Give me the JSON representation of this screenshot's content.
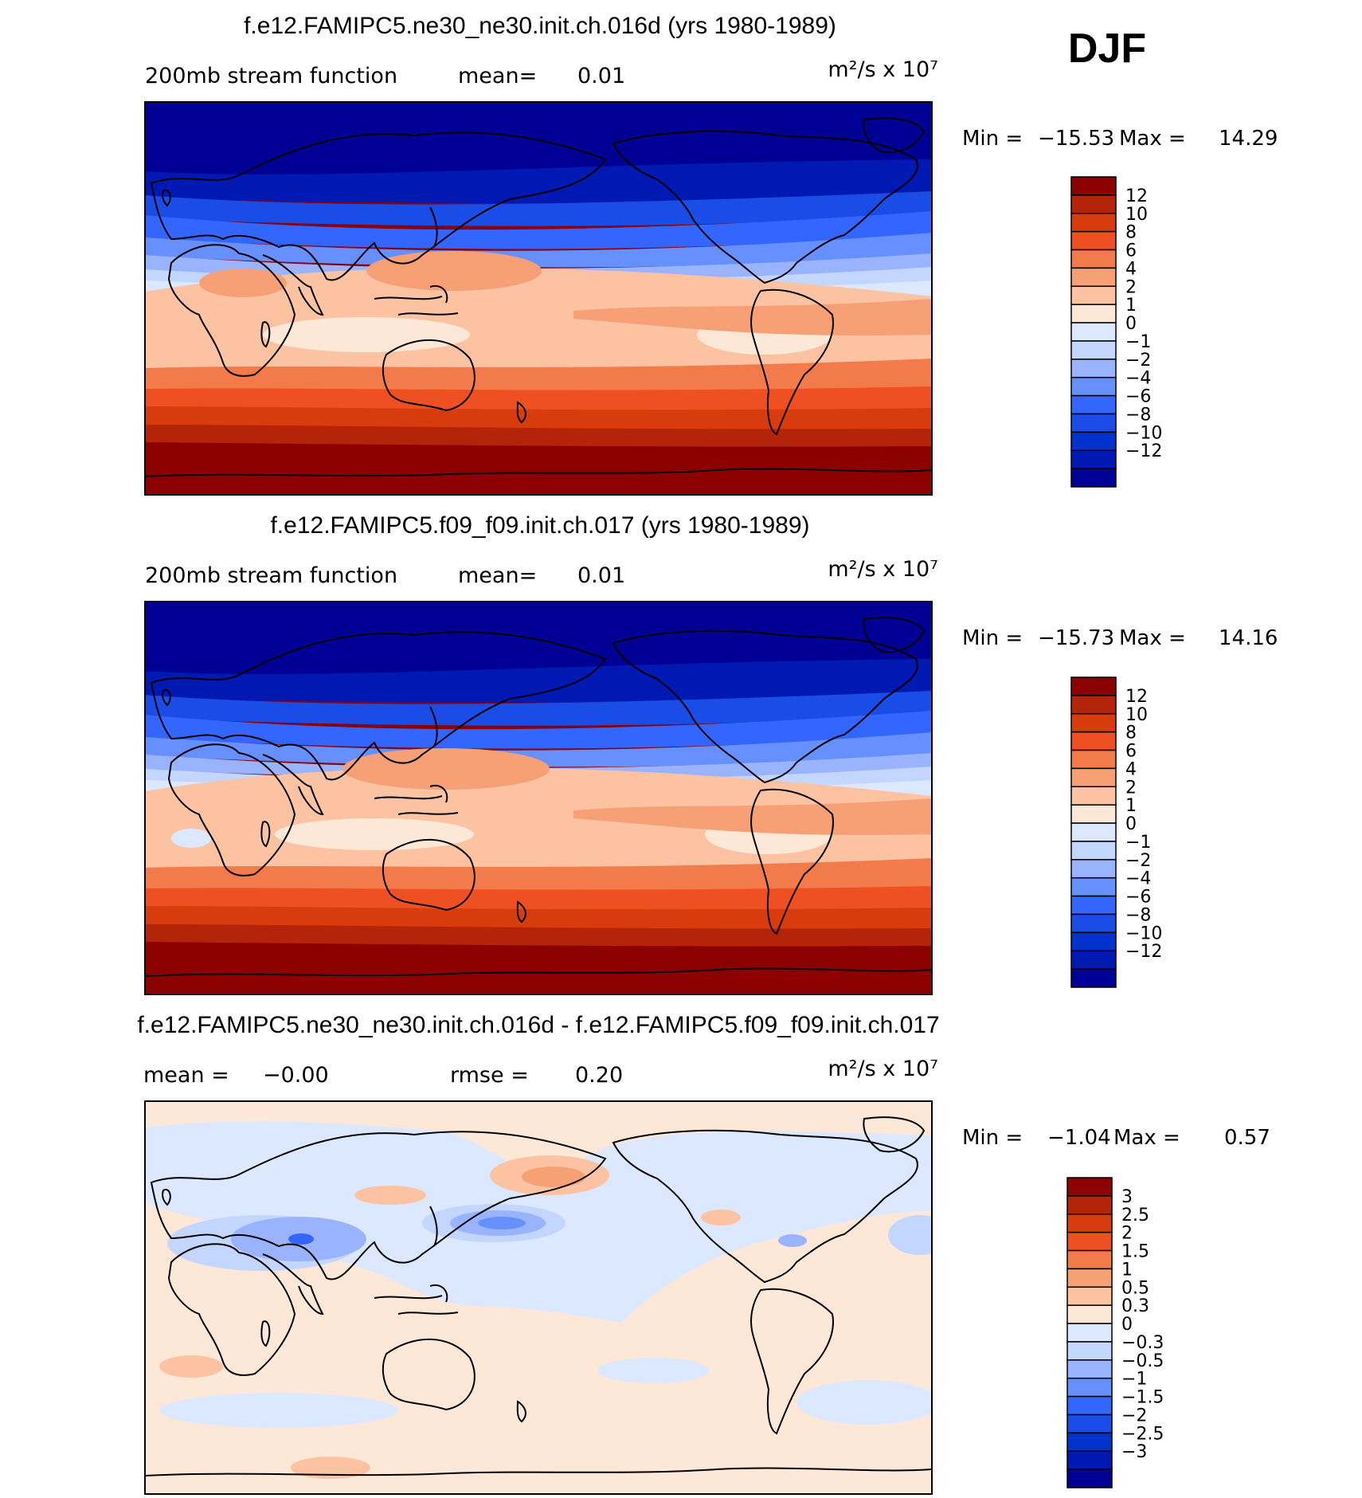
{
  "season": "DJF",
  "colors": {
    "abs_ramp": [
      "#000094",
      "#0019b3",
      "#0033cc",
      "#1a4de6",
      "#3366ff",
      "#6690ff",
      "#99b3ff",
      "#c2d6ff",
      "#dbe8ff",
      "#fde8d8",
      "#fcc3a3",
      "#f7a076",
      "#f37a4b",
      "#ee5022",
      "#d93c0c",
      "#b32408",
      "#8c0000"
    ],
    "diff_ramp": [
      "#000094",
      "#0019b3",
      "#0033cc",
      "#1a4de6",
      "#3366ff",
      "#6690ff",
      "#99b3ff",
      "#c2d6ff",
      "#dbe8ff",
      "#fde8d8",
      "#fcc3a3",
      "#f7a076",
      "#f37a4b",
      "#ee5022",
      "#d93c0c",
      "#b32408",
      "#8c0000"
    ],
    "coast": "#000000"
  },
  "panels": [
    {
      "title": "f.e12.FAMIPC5.ne30_ne30.init.ch.016d (yrs 1980-1989)",
      "field_label": "200mb stream function",
      "mean_label": "mean=",
      "mean_value": "0.01",
      "units": "m²/s x 10⁷",
      "min_label": "Min =",
      "min_value": "−15.53",
      "max_label": "Max =",
      "max_value": "14.29",
      "colorbar_labels": [
        "12",
        "10",
        "8",
        "6",
        "4",
        "2",
        "1",
        "0",
        "−1",
        "−2",
        "−4",
        "−6",
        "−8",
        "−10",
        "−12"
      ]
    },
    {
      "title": "f.e12.FAMIPC5.f09_f09.init.ch.017 (yrs 1980-1989)",
      "field_label": "200mb stream function",
      "mean_label": "mean=",
      "mean_value": "0.01",
      "units": "m²/s x 10⁷",
      "min_label": "Min =",
      "min_value": "−15.73",
      "max_label": "Max =",
      "max_value": "14.16",
      "colorbar_labels": [
        "12",
        "10",
        "8",
        "6",
        "4",
        "2",
        "1",
        "0",
        "−1",
        "−2",
        "−4",
        "−6",
        "−8",
        "−10",
        "−12"
      ]
    },
    {
      "title": "f.e12.FAMIPC5.ne30_ne30.init.ch.016d - f.e12.FAMIPC5.f09_f09.init.ch.017",
      "mean_label": "mean =",
      "mean_value": "−0.00",
      "rmse_label": "rmse =",
      "rmse_value": "0.20",
      "units": "m²/s x 10⁷",
      "min_label": "Min =",
      "min_value": "−1.04",
      "max_label": "Max =",
      "max_value": "0.57",
      "colorbar_labels": [
        "3",
        "2.5",
        "2",
        "1.5",
        "1",
        "0.5",
        "0.3",
        "0",
        "−0.3",
        "−0.5",
        "−1",
        "−1.5",
        "−2",
        "−2.5",
        "−3"
      ]
    }
  ]
}
